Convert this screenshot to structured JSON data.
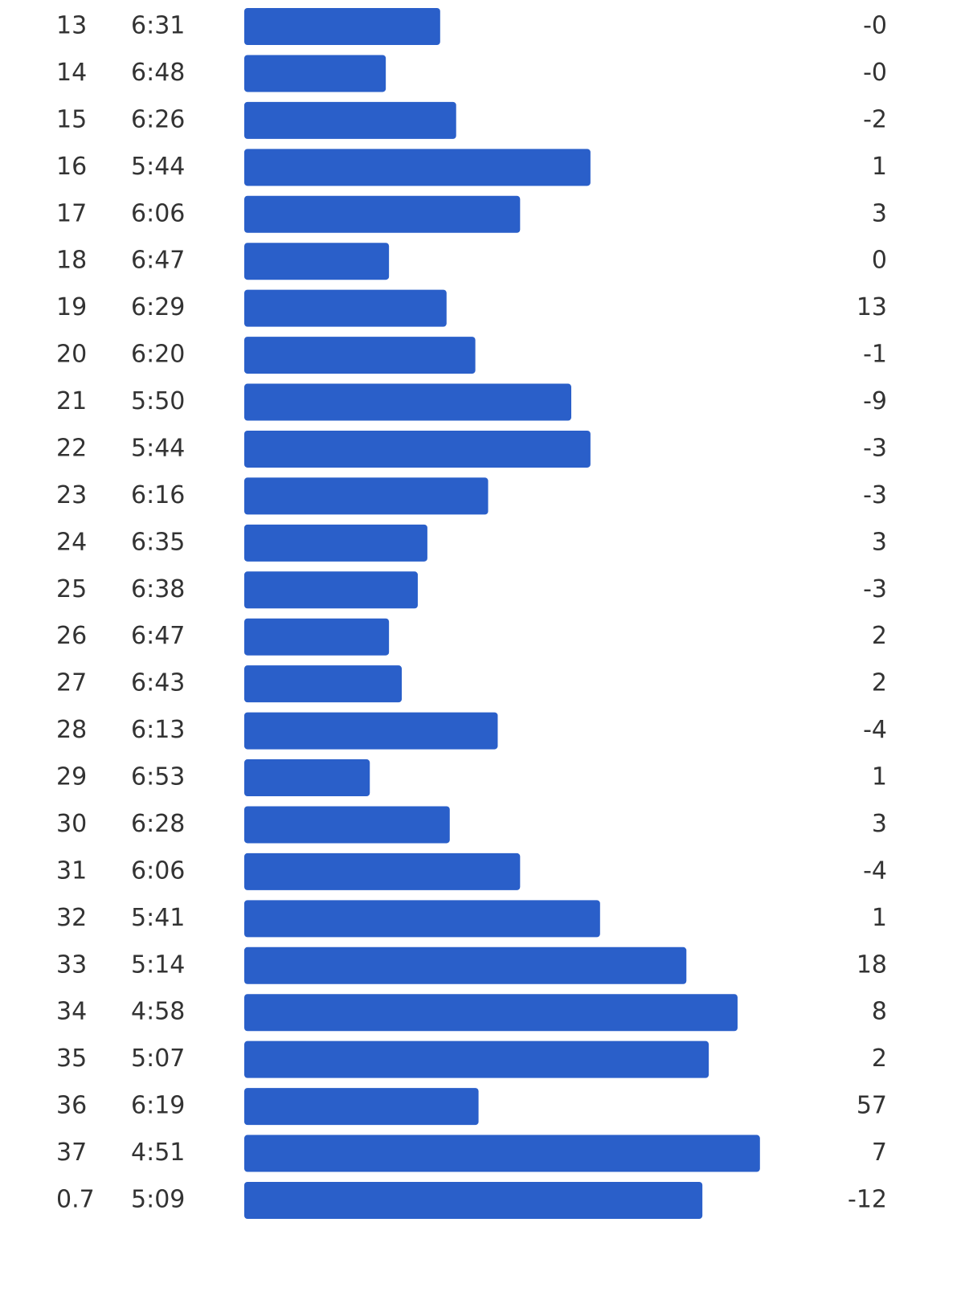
{
  "splits": {
    "rows": [
      {
        "km": "13",
        "pace": "6:31",
        "elev": "-0"
      },
      {
        "km": "14",
        "pace": "6:48",
        "elev": "-0"
      },
      {
        "km": "15",
        "pace": "6:26",
        "elev": "-2"
      },
      {
        "km": "16",
        "pace": "5:44",
        "elev": "1"
      },
      {
        "km": "17",
        "pace": "6:06",
        "elev": "3"
      },
      {
        "km": "18",
        "pace": "6:47",
        "elev": "0"
      },
      {
        "km": "19",
        "pace": "6:29",
        "elev": "13"
      },
      {
        "km": "20",
        "pace": "6:20",
        "elev": "-1"
      },
      {
        "km": "21",
        "pace": "5:50",
        "elev": "-9"
      },
      {
        "km": "22",
        "pace": "5:44",
        "elev": "-3"
      },
      {
        "km": "23",
        "pace": "6:16",
        "elev": "-3"
      },
      {
        "km": "24",
        "pace": "6:35",
        "elev": "3"
      },
      {
        "km": "25",
        "pace": "6:38",
        "elev": "-3"
      },
      {
        "km": "26",
        "pace": "6:47",
        "elev": "2"
      },
      {
        "km": "27",
        "pace": "6:43",
        "elev": "2"
      },
      {
        "km": "28",
        "pace": "6:13",
        "elev": "-4"
      },
      {
        "km": "29",
        "pace": "6:53",
        "elev": "1"
      },
      {
        "km": "30",
        "pace": "6:28",
        "elev": "3"
      },
      {
        "km": "31",
        "pace": "6:06",
        "elev": "-4"
      },
      {
        "km": "32",
        "pace": "5:41",
        "elev": "1"
      },
      {
        "km": "33",
        "pace": "5:14",
        "elev": "18"
      },
      {
        "km": "34",
        "pace": "4:58",
        "elev": "8"
      },
      {
        "km": "35",
        "pace": "5:07",
        "elev": "2"
      },
      {
        "km": "36",
        "pace": "6:19",
        "elev": "57"
      },
      {
        "km": "37",
        "pace": "4:51",
        "elev": "7"
      },
      {
        "km": "0.7",
        "pace": "5:09",
        "elev": "-12"
      }
    ]
  }
}
